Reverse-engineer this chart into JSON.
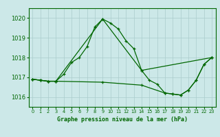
{
  "title": "",
  "xlabel": "Graphe pression niveau de la mer (hPa)",
  "ylabel": "",
  "bg_color": "#cce8e8",
  "line_color": "#006600",
  "grid_color": "#aacccc",
  "ylim": [
    1015.5,
    1020.5
  ],
  "xlim": [
    -0.5,
    23.5
  ],
  "yticks": [
    1016,
    1017,
    1018,
    1019,
    1020
  ],
  "xticks": [
    0,
    1,
    2,
    3,
    4,
    5,
    6,
    7,
    8,
    9,
    10,
    11,
    12,
    13,
    14,
    15,
    16,
    17,
    18,
    19,
    20,
    21,
    22,
    23
  ],
  "series1_x": [
    0,
    1,
    2,
    3,
    4,
    5,
    6,
    7,
    8,
    9,
    10,
    11,
    12,
    13,
    14,
    15,
    16,
    17,
    18,
    19,
    20,
    21,
    22,
    23
  ],
  "series1_y": [
    1016.9,
    1016.85,
    1016.8,
    1016.8,
    1017.15,
    1017.75,
    1018.0,
    1018.55,
    1019.55,
    1019.95,
    1019.75,
    1019.45,
    1018.85,
    1018.45,
    1017.35,
    1016.85,
    1016.65,
    1016.2,
    1016.15,
    1016.1,
    1016.35,
    1016.85,
    1017.65,
    1018.0
  ],
  "series2_x": [
    0,
    1,
    2,
    3,
    9,
    14,
    23
  ],
  "series2_y": [
    1016.9,
    1016.85,
    1016.8,
    1016.8,
    1019.95,
    1017.35,
    1018.0
  ],
  "series3_x": [
    0,
    1,
    2,
    3,
    9,
    14,
    17,
    18,
    19,
    20,
    21,
    22,
    23
  ],
  "series3_y": [
    1016.9,
    1016.85,
    1016.8,
    1016.8,
    1016.75,
    1016.6,
    1016.2,
    1016.15,
    1016.1,
    1016.35,
    1016.85,
    1017.65,
    1018.0
  ],
  "xlabel_fontsize": 6.0,
  "ytick_fontsize": 6.0,
  "xtick_fontsize": 4.8
}
